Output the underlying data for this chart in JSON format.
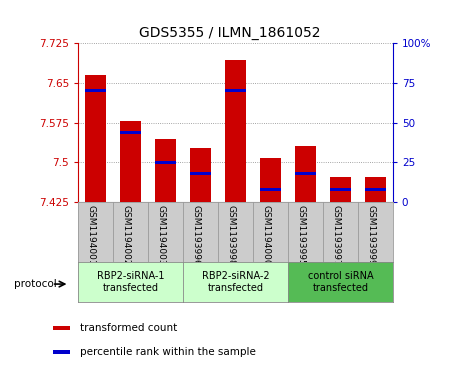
{
  "title": "GDS5355 / ILMN_1861052",
  "samples": [
    "GSM1194001",
    "GSM1194002",
    "GSM1194003",
    "GSM1193996",
    "GSM1193998",
    "GSM1194000",
    "GSM1193995",
    "GSM1193997",
    "GSM1193999"
  ],
  "transformed_counts": [
    7.665,
    7.578,
    7.545,
    7.528,
    7.692,
    7.508,
    7.53,
    7.472,
    7.472
  ],
  "percentile_ranks": [
    70,
    44,
    25,
    18,
    70,
    8,
    18,
    8,
    8
  ],
  "y_min": 7.425,
  "y_max": 7.725,
  "y_ticks": [
    7.425,
    7.5,
    7.575,
    7.65,
    7.725
  ],
  "right_y_ticks": [
    0,
    25,
    50,
    75,
    100
  ],
  "right_y_labels": [
    "0",
    "25",
    "50",
    "75",
    "100%"
  ],
  "groups": [
    {
      "label": "RBP2-siRNA-1\ntransfected",
      "start": 0,
      "end": 3,
      "color": "#ccffcc"
    },
    {
      "label": "RBP2-siRNA-2\ntransfected",
      "start": 3,
      "end": 6,
      "color": "#ccffcc"
    },
    {
      "label": "control siRNA\ntransfected",
      "start": 6,
      "end": 9,
      "color": "#55bb55"
    }
  ],
  "bar_color": "#cc0000",
  "percentile_color": "#0000cc",
  "bar_width": 0.6,
  "background_color": "#ffffff",
  "plot_bg_color": "#ffffff",
  "grid_color": "#888888",
  "left_axis_color": "#cc0000",
  "right_axis_color": "#0000cc",
  "sample_box_color": "#cccccc",
  "protocol_label": "protocol",
  "legend_items": [
    {
      "label": "transformed count",
      "color": "#cc0000"
    },
    {
      "label": "percentile rank within the sample",
      "color": "#0000cc"
    }
  ]
}
